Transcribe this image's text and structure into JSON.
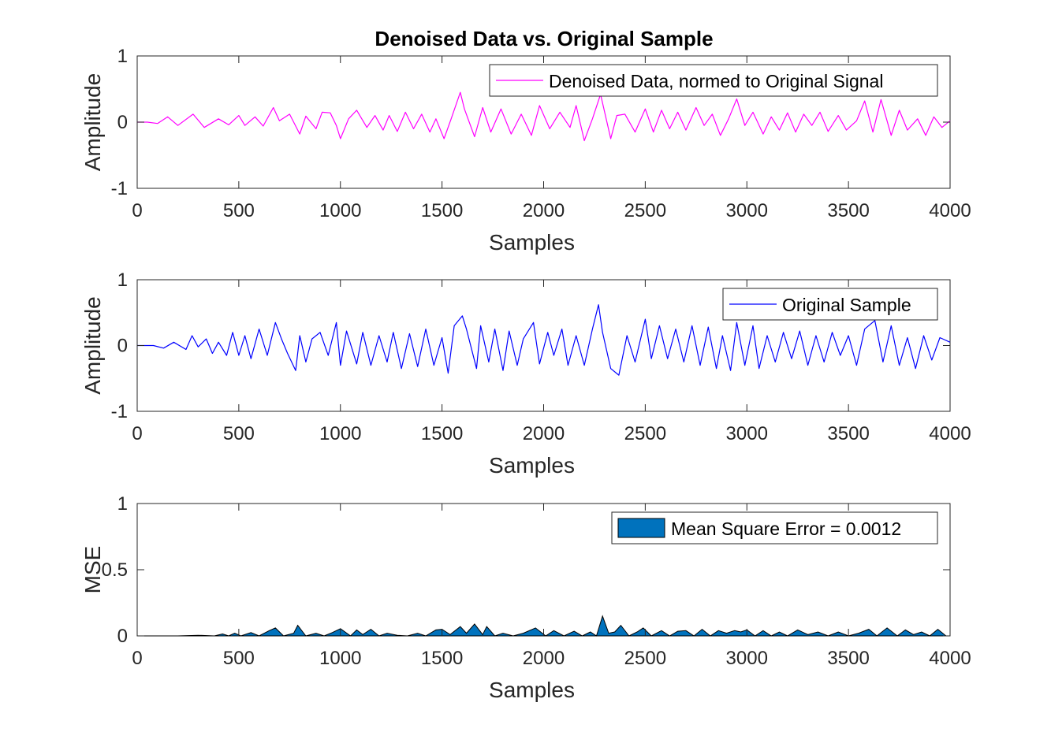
{
  "figure": {
    "title": "Denoised Data vs. Original Sample",
    "colors": {
      "axis": "#262626",
      "magenta": "#ff00ff",
      "blue": "#0000ff",
      "fill": "#0072bd",
      "edge": "#000000"
    }
  },
  "chart_data": [
    {
      "type": "line",
      "title": "Denoised Data vs. Original Sample",
      "xlabel": "Samples",
      "ylabel": "Amplitude",
      "xlim": [
        0,
        4000
      ],
      "ylim": [
        -1,
        1
      ],
      "xticks": [
        0,
        500,
        1000,
        1500,
        2000,
        2500,
        3000,
        3500,
        4000
      ],
      "yticks": [
        -1,
        0,
        1
      ],
      "legend": "top-right",
      "grid": false,
      "series": [
        {
          "name": "Denoised Data, normed to Original Signal",
          "color": "#ff00ff",
          "x": [
            0,
            50,
            100,
            150,
            200,
            275,
            330,
            400,
            450,
            500,
            530,
            580,
            620,
            670,
            700,
            750,
            800,
            830,
            880,
            910,
            950,
            980,
            1000,
            1040,
            1080,
            1130,
            1170,
            1210,
            1240,
            1280,
            1320,
            1360,
            1400,
            1440,
            1470,
            1510,
            1545,
            1590,
            1610,
            1660,
            1700,
            1740,
            1790,
            1840,
            1890,
            1940,
            1980,
            2030,
            2080,
            2130,
            2160,
            2200,
            2240,
            2280,
            2330,
            2360,
            2400,
            2450,
            2500,
            2540,
            2580,
            2620,
            2660,
            2700,
            2750,
            2790,
            2830,
            2870,
            2910,
            2950,
            2990,
            3030,
            3080,
            3120,
            3160,
            3200,
            3240,
            3280,
            3320,
            3360,
            3400,
            3450,
            3490,
            3540,
            3580,
            3620,
            3660,
            3710,
            3750,
            3790,
            3840,
            3880,
            3920,
            3960,
            4000
          ],
          "y": [
            0,
            0,
            -0.02,
            0.08,
            -0.05,
            0.12,
            -0.08,
            0.05,
            -0.04,
            0.1,
            -0.05,
            0.08,
            -0.06,
            0.22,
            0.02,
            0.12,
            -0.18,
            0.09,
            -0.1,
            0.15,
            0.14,
            -0.05,
            -0.25,
            0.05,
            0.18,
            -0.08,
            0.1,
            -0.12,
            0.1,
            -0.14,
            0.15,
            -0.1,
            0.12,
            -0.15,
            0.05,
            -0.25,
            0.05,
            0.45,
            0.2,
            -0.22,
            0.22,
            -0.15,
            0.2,
            -0.18,
            0.12,
            -0.2,
            0.25,
            -0.1,
            0.15,
            -0.08,
            0.25,
            -0.28,
            0.05,
            0.42,
            -0.25,
            0.1,
            0.12,
            -0.15,
            0.2,
            -0.15,
            0.18,
            -0.1,
            0.15,
            -0.12,
            0.22,
            -0.05,
            0.12,
            -0.2,
            0.05,
            0.35,
            -0.05,
            0.15,
            -0.18,
            0.08,
            -0.12,
            0.14,
            -0.15,
            0.12,
            -0.05,
            0.15,
            -0.14,
            0.1,
            -0.12,
            0.02,
            0.32,
            -0.15,
            0.34,
            -0.2,
            0.18,
            -0.12,
            0.05,
            -0.2,
            0.08,
            -0.08,
            0.02
          ]
        }
      ]
    },
    {
      "type": "line",
      "xlabel": "Samples",
      "ylabel": "Amplitude",
      "xlim": [
        0,
        4000
      ],
      "ylim": [
        -1,
        1
      ],
      "xticks": [
        0,
        500,
        1000,
        1500,
        2000,
        2500,
        3000,
        3500,
        4000
      ],
      "yticks": [
        -1,
        0,
        1
      ],
      "legend": "top-right",
      "grid": false,
      "series": [
        {
          "name": "Original Sample",
          "color": "#0000ff",
          "x": [
            0,
            80,
            130,
            180,
            240,
            270,
            300,
            340,
            370,
            400,
            440,
            470,
            500,
            530,
            560,
            600,
            640,
            680,
            710,
            740,
            780,
            800,
            830,
            860,
            900,
            940,
            980,
            1000,
            1030,
            1080,
            1110,
            1150,
            1190,
            1230,
            1260,
            1300,
            1340,
            1380,
            1420,
            1460,
            1500,
            1530,
            1560,
            1600,
            1620,
            1670,
            1690,
            1730,
            1760,
            1800,
            1830,
            1870,
            1900,
            1950,
            1980,
            2020,
            2050,
            2090,
            2120,
            2160,
            2200,
            2240,
            2270,
            2290,
            2330,
            2370,
            2410,
            2450,
            2500,
            2530,
            2570,
            2610,
            2650,
            2690,
            2730,
            2770,
            2810,
            2850,
            2880,
            2920,
            2950,
            2990,
            3030,
            3060,
            3100,
            3140,
            3180,
            3220,
            3260,
            3300,
            3340,
            3380,
            3420,
            3460,
            3500,
            3540,
            3580,
            3630,
            3670,
            3710,
            3750,
            3790,
            3830,
            3870,
            3910,
            3950,
            4000
          ],
          "y": [
            0,
            0,
            -0.04,
            0.05,
            -0.06,
            0.15,
            -0.02,
            0.1,
            -0.12,
            0.05,
            -0.15,
            0.2,
            -0.15,
            0.15,
            -0.2,
            0.25,
            -0.15,
            0.35,
            0.1,
            -0.12,
            -0.38,
            0.15,
            -0.25,
            0.1,
            0.2,
            -0.15,
            0.35,
            -0.3,
            0.22,
            -0.28,
            0.2,
            -0.3,
            0.15,
            -0.25,
            0.2,
            -0.35,
            0.18,
            -0.32,
            0.25,
            -0.3,
            0.12,
            -0.42,
            0.3,
            0.45,
            0.25,
            -0.35,
            0.3,
            -0.25,
            0.25,
            -0.38,
            0.22,
            -0.3,
            0.1,
            0.35,
            -0.28,
            0.2,
            -0.15,
            0.25,
            -0.3,
            0.15,
            -0.3,
            0.25,
            0.62,
            0.2,
            -0.35,
            -0.45,
            0.15,
            -0.25,
            0.4,
            -0.2,
            0.3,
            -0.2,
            0.25,
            -0.25,
            0.3,
            -0.3,
            0.28,
            -0.35,
            0.15,
            -0.38,
            0.35,
            -0.3,
            0.3,
            -0.35,
            0.15,
            -0.25,
            0.2,
            -0.2,
            0.22,
            -0.3,
            0.15,
            -0.25,
            0.2,
            -0.15,
            0.15,
            -0.3,
            0.25,
            0.38,
            -0.25,
            0.3,
            -0.3,
            0.12,
            -0.35,
            0.15,
            -0.22,
            0.12,
            0.05
          ]
        }
      ]
    },
    {
      "type": "area",
      "xlabel": "Samples",
      "ylabel": "MSE",
      "xlim": [
        0,
        4000
      ],
      "ylim": [
        0,
        1
      ],
      "xticks": [
        0,
        500,
        1000,
        1500,
        2000,
        2500,
        3000,
        3500,
        4000
      ],
      "yticks": [
        0,
        0.5,
        1
      ],
      "legend": "top-right",
      "grid": false,
      "series": [
        {
          "name": "Mean Square Error = 0.0012",
          "color": "#0072bd",
          "x": [
            0,
            100,
            200,
            300,
            380,
            420,
            450,
            480,
            510,
            560,
            600,
            650,
            680,
            720,
            770,
            790,
            830,
            880,
            920,
            960,
            1000,
            1050,
            1080,
            1110,
            1150,
            1190,
            1230,
            1280,
            1330,
            1380,
            1420,
            1470,
            1500,
            1540,
            1590,
            1620,
            1660,
            1700,
            1720,
            1760,
            1800,
            1850,
            1900,
            1960,
            2010,
            2050,
            2100,
            2150,
            2190,
            2230,
            2260,
            2290,
            2320,
            2350,
            2380,
            2420,
            2460,
            2490,
            2530,
            2580,
            2620,
            2660,
            2700,
            2740,
            2780,
            2820,
            2860,
            2900,
            2940,
            2970,
            3000,
            3040,
            3080,
            3120,
            3160,
            3200,
            3250,
            3300,
            3350,
            3400,
            3450,
            3500,
            3550,
            3600,
            3640,
            3690,
            3740,
            3780,
            3820,
            3860,
            3900,
            3940,
            3980,
            4000
          ],
          "y": [
            0,
            0,
            0,
            0.005,
            0,
            0.015,
            0,
            0.02,
            0,
            0.025,
            0,
            0.04,
            0.06,
            0,
            0.02,
            0.08,
            0,
            0.02,
            0,
            0.025,
            0.055,
            0,
            0.045,
            0.01,
            0.05,
            0,
            0.02,
            0.005,
            0,
            0.02,
            0,
            0.045,
            0.05,
            0.01,
            0.07,
            0.02,
            0.09,
            0.01,
            0.07,
            0,
            0.02,
            0,
            0.02,
            0.06,
            0,
            0.04,
            0,
            0.035,
            0,
            0.03,
            0,
            0.15,
            0.02,
            0.03,
            0.08,
            0,
            0.03,
            0.06,
            0,
            0.04,
            0,
            0.035,
            0.04,
            0,
            0.05,
            0,
            0.04,
            0.02,
            0.04,
            0.03,
            0.045,
            0,
            0.04,
            0,
            0.03,
            0,
            0.045,
            0.01,
            0.03,
            0,
            0.03,
            0,
            0.02,
            0.05,
            0,
            0.06,
            0,
            0.045,
            0.01,
            0.03,
            0,
            0.05,
            0,
            0
          ]
        }
      ]
    }
  ]
}
